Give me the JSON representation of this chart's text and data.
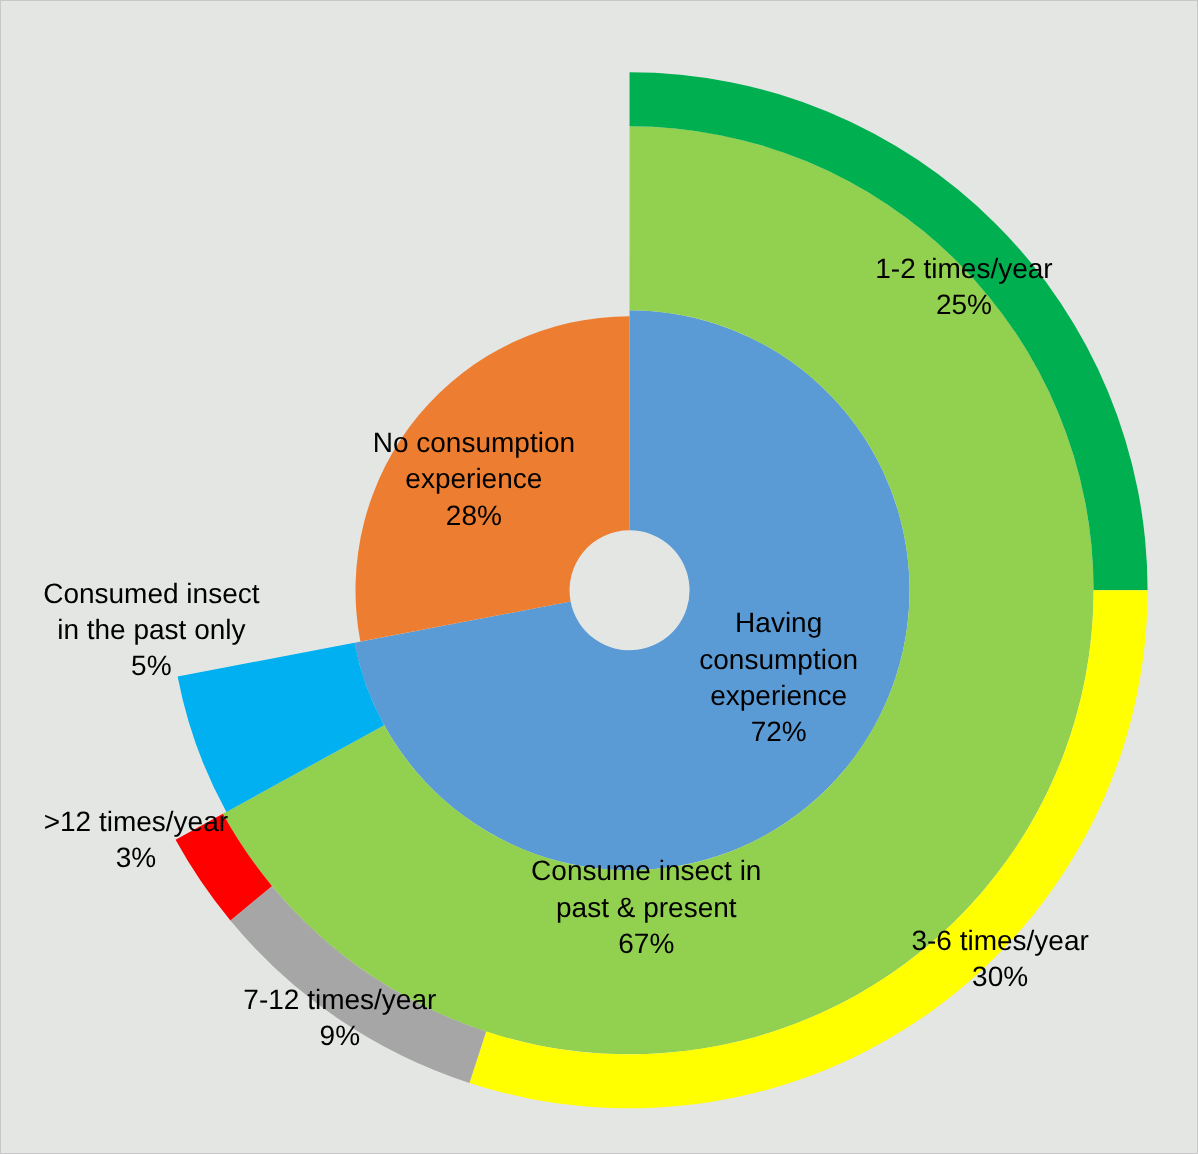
{
  "chart_data": [
    {
      "type": "donut",
      "categories": [
        "Having consumption experience",
        "No consumption experience"
      ],
      "values": [
        72,
        28
      ],
      "value_labels": [
        "72%",
        "28%"
      ],
      "colors": [
        "#5b9bd5",
        "#ed7d31"
      ]
    },
    {
      "type": "donut",
      "categories": [
        "Consume insect in past & present",
        "Consumed insect in the past only"
      ],
      "values": [
        67,
        5
      ],
      "value_labels": [
        "67%",
        "5%"
      ],
      "colors": [
        "#92d050",
        "#00b0f0"
      ]
    },
    {
      "type": "donut",
      "categories": [
        "1-2 times/year",
        "3-6 times/year",
        "7-12 times/year",
        ">12 times/year"
      ],
      "values": [
        25,
        30,
        9,
        3
      ],
      "value_labels": [
        "25%",
        "30%",
        "9%",
        "3%"
      ],
      "colors": [
        "#00b050",
        "#ffff00",
        "#a6a6a6",
        "#ff0000"
      ]
    }
  ]
}
